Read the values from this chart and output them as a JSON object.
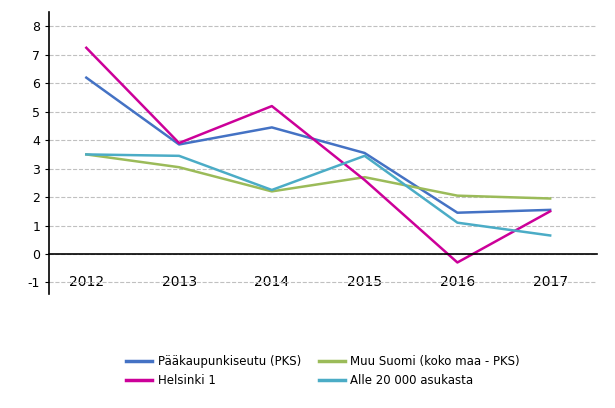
{
  "years": [
    2012,
    2013,
    2014,
    2015,
    2016,
    2017
  ],
  "series": [
    {
      "label": "Pääkaupunkiseutu (PKS)",
      "values": [
        6.2,
        3.85,
        4.45,
        3.55,
        1.45,
        1.55
      ],
      "color": "#4472C4"
    },
    {
      "label": "Muu Suomi (koko maa - PKS)",
      "values": [
        3.5,
        3.05,
        2.2,
        2.7,
        2.05,
        1.95
      ],
      "color": "#9BBB59"
    },
    {
      "label": "Helsinki 1",
      "values": [
        7.25,
        3.9,
        5.2,
        2.6,
        -0.3,
        1.5
      ],
      "color": "#CC0099"
    },
    {
      "label": "Alle 20 000 asukasta",
      "values": [
        3.5,
        3.45,
        2.25,
        3.45,
        1.1,
        0.65
      ],
      "color": "#4BACC6"
    }
  ],
  "ylim": [
    -1.4,
    8.5
  ],
  "yticks": [
    -1,
    0,
    1,
    2,
    3,
    4,
    5,
    6,
    7,
    8
  ],
  "background_color": "#ffffff",
  "grid_color": "#C0C0C0",
  "linewidth": 1.8
}
